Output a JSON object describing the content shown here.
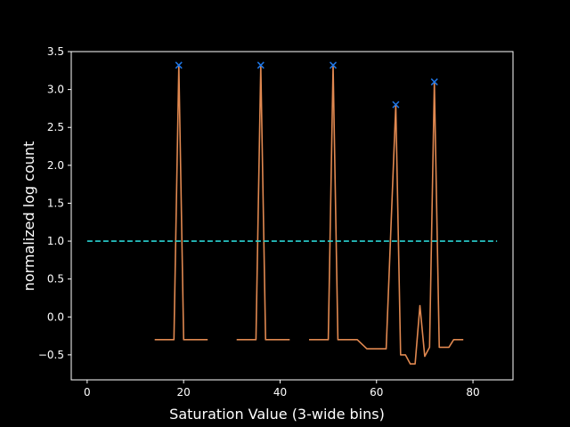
{
  "chart_data": {
    "type": "line",
    "title": "",
    "xlabel": "Saturation Value (3-wide bins)",
    "ylabel": "normalized log count",
    "xlim": [
      -3.3,
      88.3
    ],
    "ylim": [
      -0.83,
      3.5
    ],
    "xticks": [
      0,
      20,
      40,
      60,
      80
    ],
    "xtick_labels": [
      "0",
      "20",
      "40",
      "60",
      "80"
    ],
    "yticks": [
      -0.5,
      0.0,
      0.5,
      1.0,
      1.5,
      2.0,
      2.5,
      3.0,
      3.5
    ],
    "ytick_labels": [
      "−0.5",
      "0.0",
      "0.5",
      "1.0",
      "1.5",
      "2.0",
      "2.5",
      "3.0",
      "3.5"
    ],
    "grid": false,
    "colors": {
      "background": "#000000",
      "axes": "#ffffff",
      "series": "#e08850",
      "threshold": "#2ad4d4",
      "peak_marker": "#1f77e8"
    },
    "series": [
      {
        "style": "solid",
        "segments": [
          [
            [
              14,
              -0.3
            ],
            [
              18,
              -0.3
            ],
            [
              19,
              3.32
            ],
            [
              20,
              -0.3
            ],
            [
              25,
              -0.3
            ]
          ],
          [
            [
              31,
              -0.3
            ],
            [
              35,
              -0.3
            ],
            [
              36,
              3.32
            ],
            [
              37,
              -0.3
            ],
            [
              42,
              -0.3
            ]
          ],
          [
            [
              46,
              -0.3
            ],
            [
              50,
              -0.3
            ],
            [
              51,
              3.32
            ],
            [
              52,
              -0.3
            ],
            [
              56,
              -0.3
            ],
            [
              58,
              -0.42
            ],
            [
              62,
              -0.42
            ],
            [
              64,
              2.8
            ],
            [
              65,
              -0.5
            ],
            [
              66,
              -0.5
            ],
            [
              67,
              -0.62
            ],
            [
              68,
              -0.62
            ],
            [
              69,
              0.15
            ],
            [
              70,
              -0.52
            ],
            [
              71,
              -0.4
            ],
            [
              72,
              3.1
            ],
            [
              73,
              -0.4
            ],
            [
              75,
              -0.4
            ],
            [
              76,
              -0.3
            ],
            [
              78,
              -0.3
            ]
          ]
        ]
      },
      {
        "style": "dashed",
        "x": [
          0,
          85
        ],
        "y": [
          1.0,
          1.0
        ]
      }
    ],
    "peaks": [
      {
        "x": 19,
        "y": 3.32
      },
      {
        "x": 36,
        "y": 3.32
      },
      {
        "x": 51,
        "y": 3.32
      },
      {
        "x": 64,
        "y": 2.8
      },
      {
        "x": 72,
        "y": 3.1
      }
    ]
  }
}
